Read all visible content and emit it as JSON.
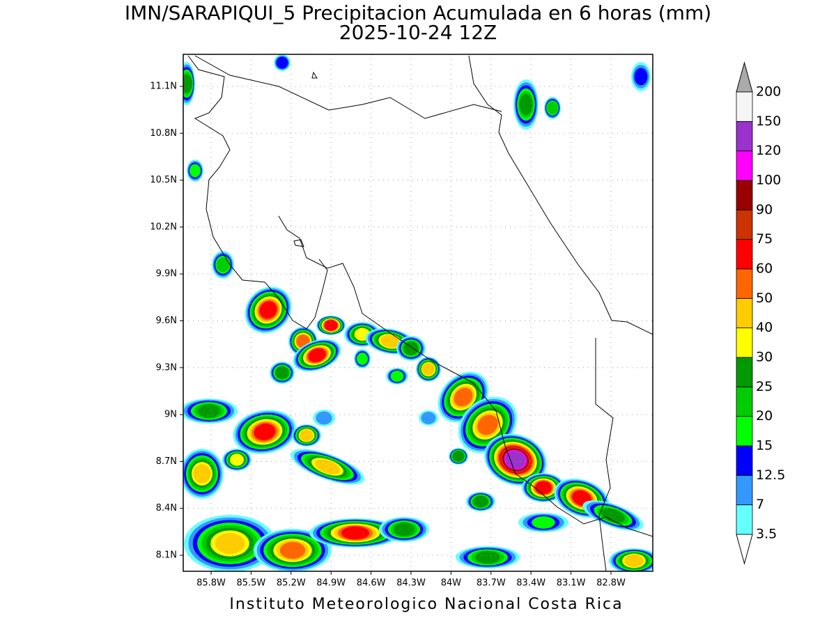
{
  "title": "IMN/SARAPIQUI_5 Precipitacion Acumulada en 6 horas (mm)",
  "subtitle": "2025-10-24 12Z",
  "map": {
    "lat_labels": [
      "11.1N",
      "10.8N",
      "10.5N",
      "10.2N",
      "9.9N",
      "9.6N",
      "9.3N",
      "9N",
      "8.7N",
      "8.4N",
      "8.1N"
    ],
    "lon_labels": [
      "85.8W",
      "85.5W",
      "85.2W",
      "84.9W",
      "84.6W",
      "84.3W",
      "84W",
      "83.7W",
      "83.4W",
      "83.1W",
      "82.8W"
    ]
  },
  "colorbar": {
    "levels": [
      "3.5",
      "7",
      "12.5",
      "15",
      "20",
      "25",
      "30",
      "40",
      "50",
      "60",
      "75",
      "90",
      "100",
      "120",
      "150",
      "200"
    ],
    "colors": [
      "#66ffff",
      "#3399ff",
      "#0000ff",
      "#00ff00",
      "#00cc00",
      "#009900",
      "#ffff00",
      "#ffcc00",
      "#ff6600",
      "#ff0000",
      "#cc3300",
      "#990000",
      "#ff00ff",
      "#9933cc",
      "#f5f5f5"
    ]
  },
  "footer": "Instituto Meteorologico Nacional Costa Rica"
}
